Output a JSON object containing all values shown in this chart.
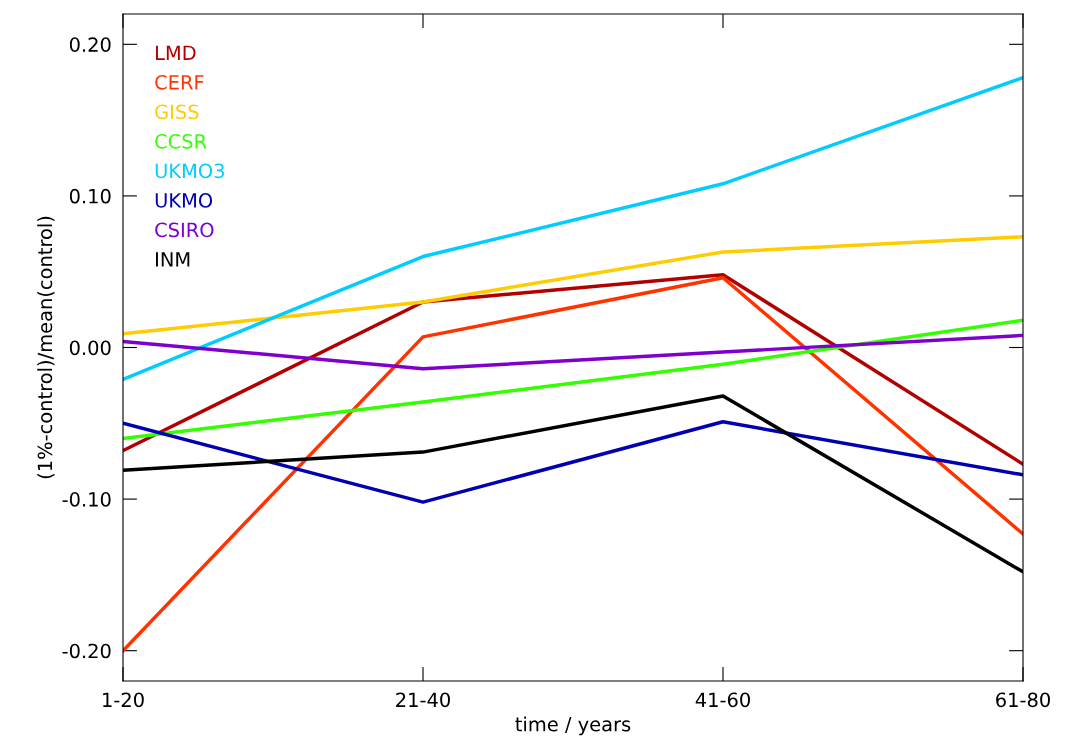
{
  "chart_data": {
    "type": "line",
    "xlabel": "time / years",
    "ylabel": "(1%-control)/mean(control)",
    "categories": [
      "1-20",
      "21-40",
      "41-60",
      "61-80"
    ],
    "ylim": [
      -0.22,
      0.22
    ],
    "yticks": [
      {
        "value": -0.2,
        "label": "-0.20"
      },
      {
        "value": -0.1,
        "label": "-0.10"
      },
      {
        "value": 0,
        "label": "0.00"
      },
      {
        "value": 0.1,
        "label": "0.10"
      },
      {
        "value": 0.2,
        "label": "0.20"
      }
    ],
    "legend": "top left",
    "grid": false,
    "marker": "none",
    "line_style": "solid",
    "series": [
      {
        "name": "LMD",
        "color": "#b20000",
        "values": [
          -0.068,
          0.03,
          0.048,
          -0.077
        ]
      },
      {
        "name": "CERF",
        "color": "#ff3300",
        "values": [
          -0.2,
          0.007,
          0.046,
          -0.123
        ]
      },
      {
        "name": "GISS",
        "color": "#ffcc00",
        "values": [
          0.009,
          0.03,
          0.063,
          0.073
        ]
      },
      {
        "name": "CCSR",
        "color": "#33ff00",
        "values": [
          -0.06,
          -0.036,
          -0.011,
          0.018
        ]
      },
      {
        "name": "UKMO3",
        "color": "#00ccff",
        "values": [
          -0.021,
          0.06,
          0.108,
          0.178
        ]
      },
      {
        "name": "UKMO",
        "color": "#0000b2",
        "values": [
          -0.05,
          -0.102,
          -0.049,
          -0.084
        ]
      },
      {
        "name": "CSIRO",
        "color": "#7f00cc",
        "values": [
          0.004,
          -0.014,
          -0.003,
          0.008
        ]
      },
      {
        "name": "INM",
        "color": "#000000",
        "values": [
          -0.081,
          -0.069,
          -0.032,
          -0.148
        ]
      }
    ]
  }
}
